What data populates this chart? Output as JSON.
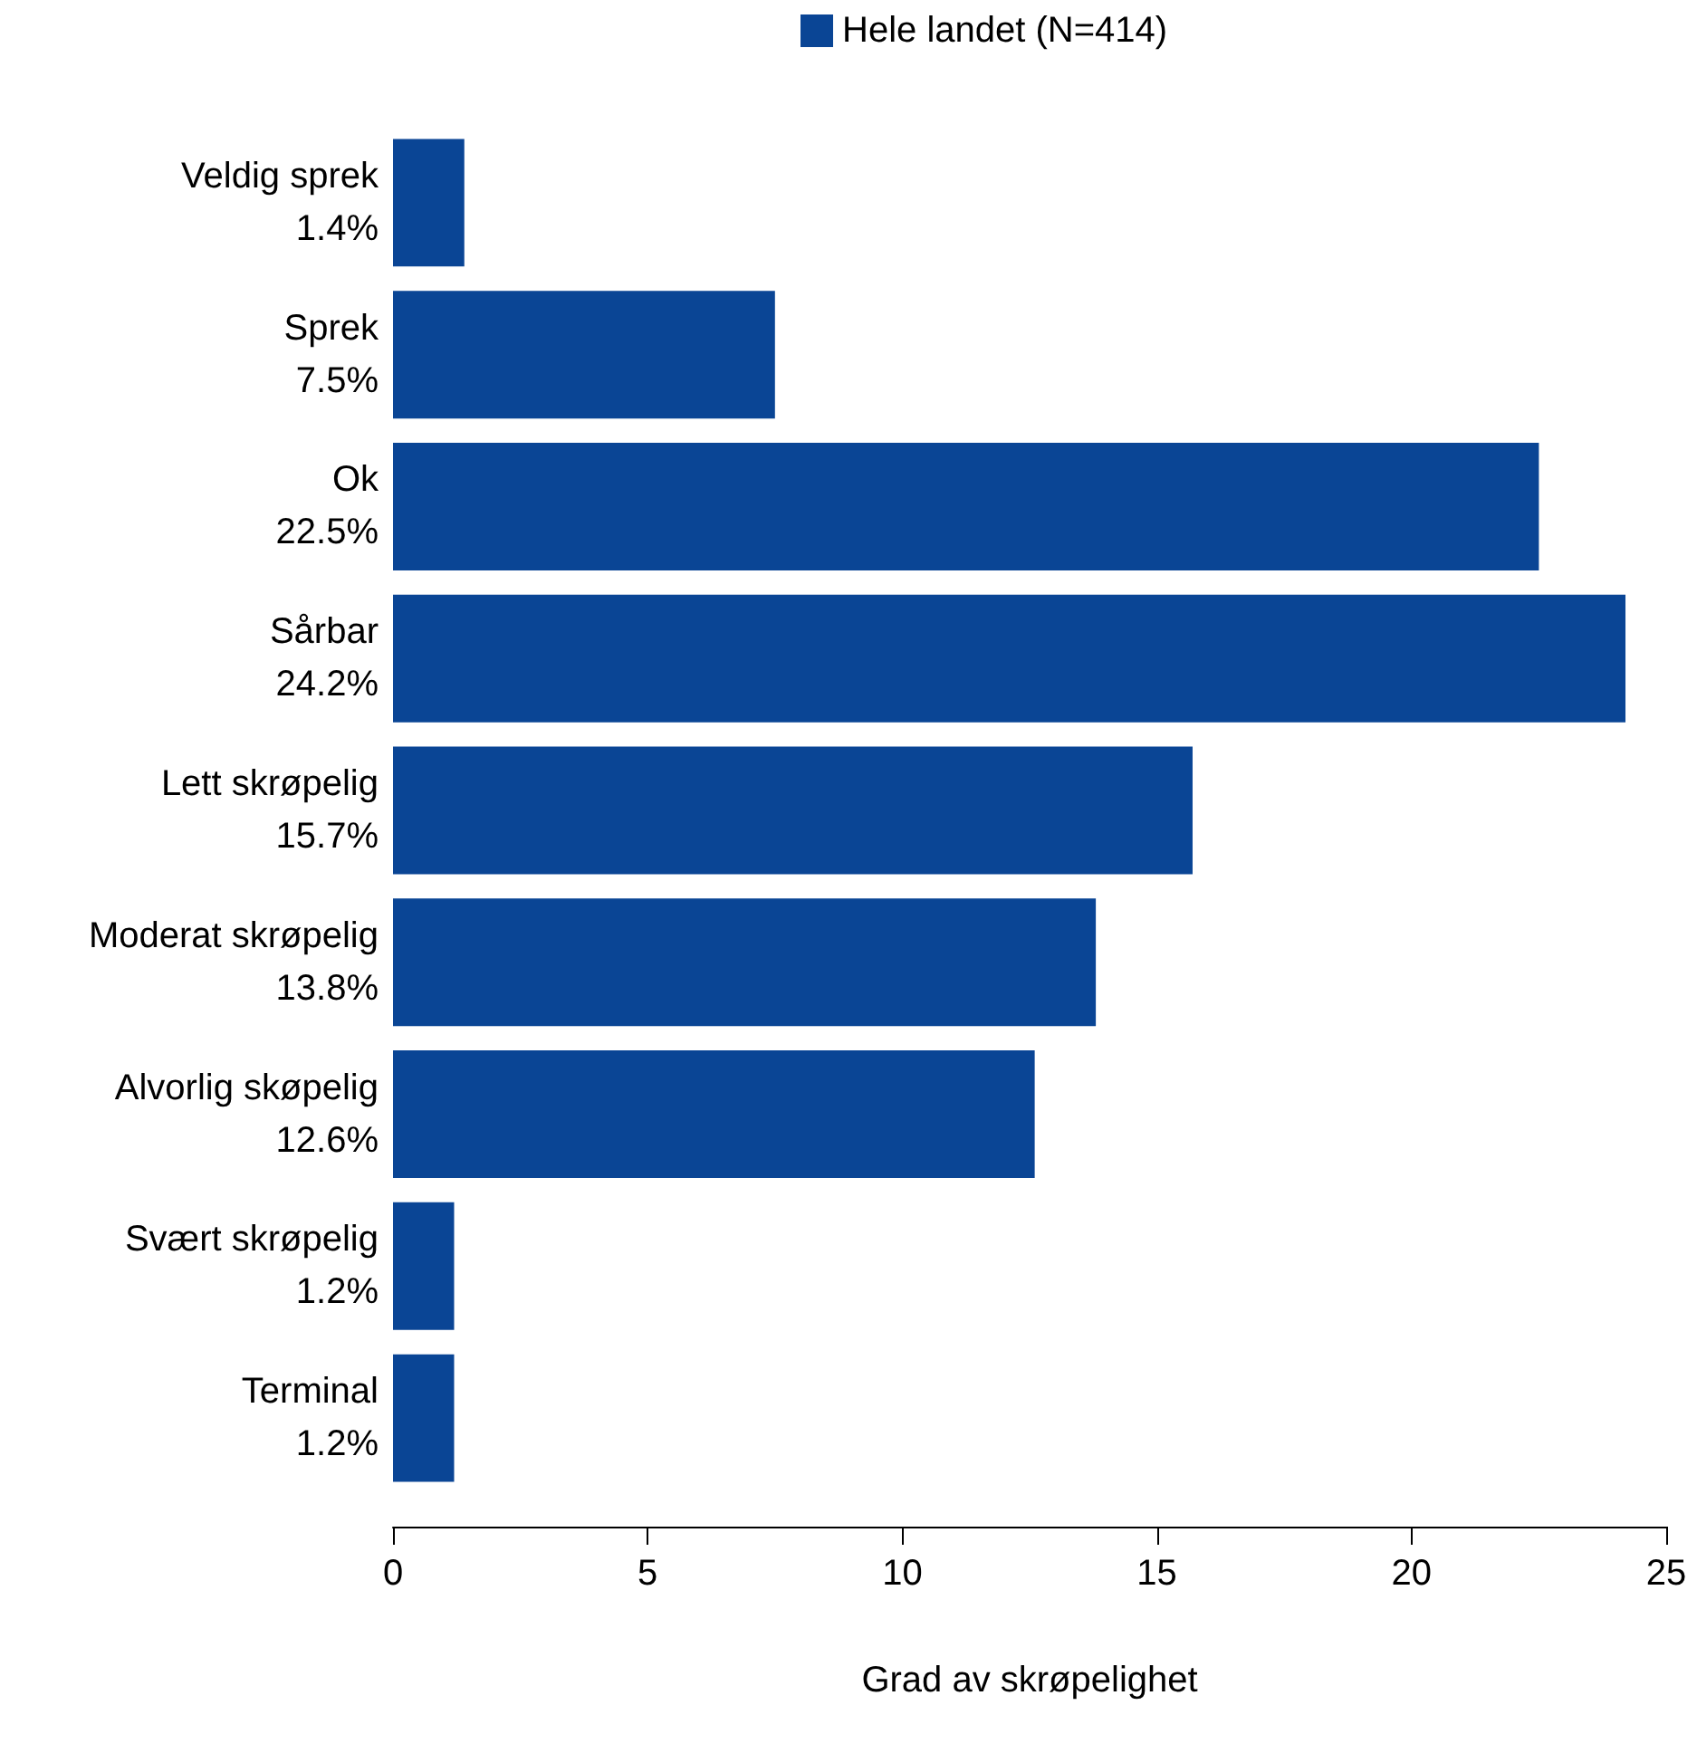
{
  "chart_data": {
    "type": "bar",
    "orientation": "horizontal",
    "xlabel": "Grad av skrøpelighet",
    "categories": [
      "Veldig sprek",
      "Sprek",
      "Ok",
      "Sårbar",
      "Lett skrøpelig",
      "Moderat skrøpelig",
      "Alvorlig skøpelig",
      "Svært skrøpelig",
      "Terminal"
    ],
    "series": [
      {
        "name": "Hele landet (N=414)",
        "color": "#0a4595",
        "values": [
          1.4,
          7.5,
          22.5,
          24.2,
          15.7,
          13.8,
          12.6,
          1.2,
          1.2
        ],
        "value_labels": [
          "1.4%",
          "7.5%",
          "22.5%",
          "24.2%",
          "15.7%",
          "13.8%",
          "12.6%",
          "1.2%",
          "1.2%"
        ]
      }
    ],
    "xlim": [
      0,
      25
    ],
    "xticks": [
      0,
      5,
      10,
      15,
      20,
      25
    ],
    "grid": false,
    "legend": "top",
    "marker": "square"
  }
}
